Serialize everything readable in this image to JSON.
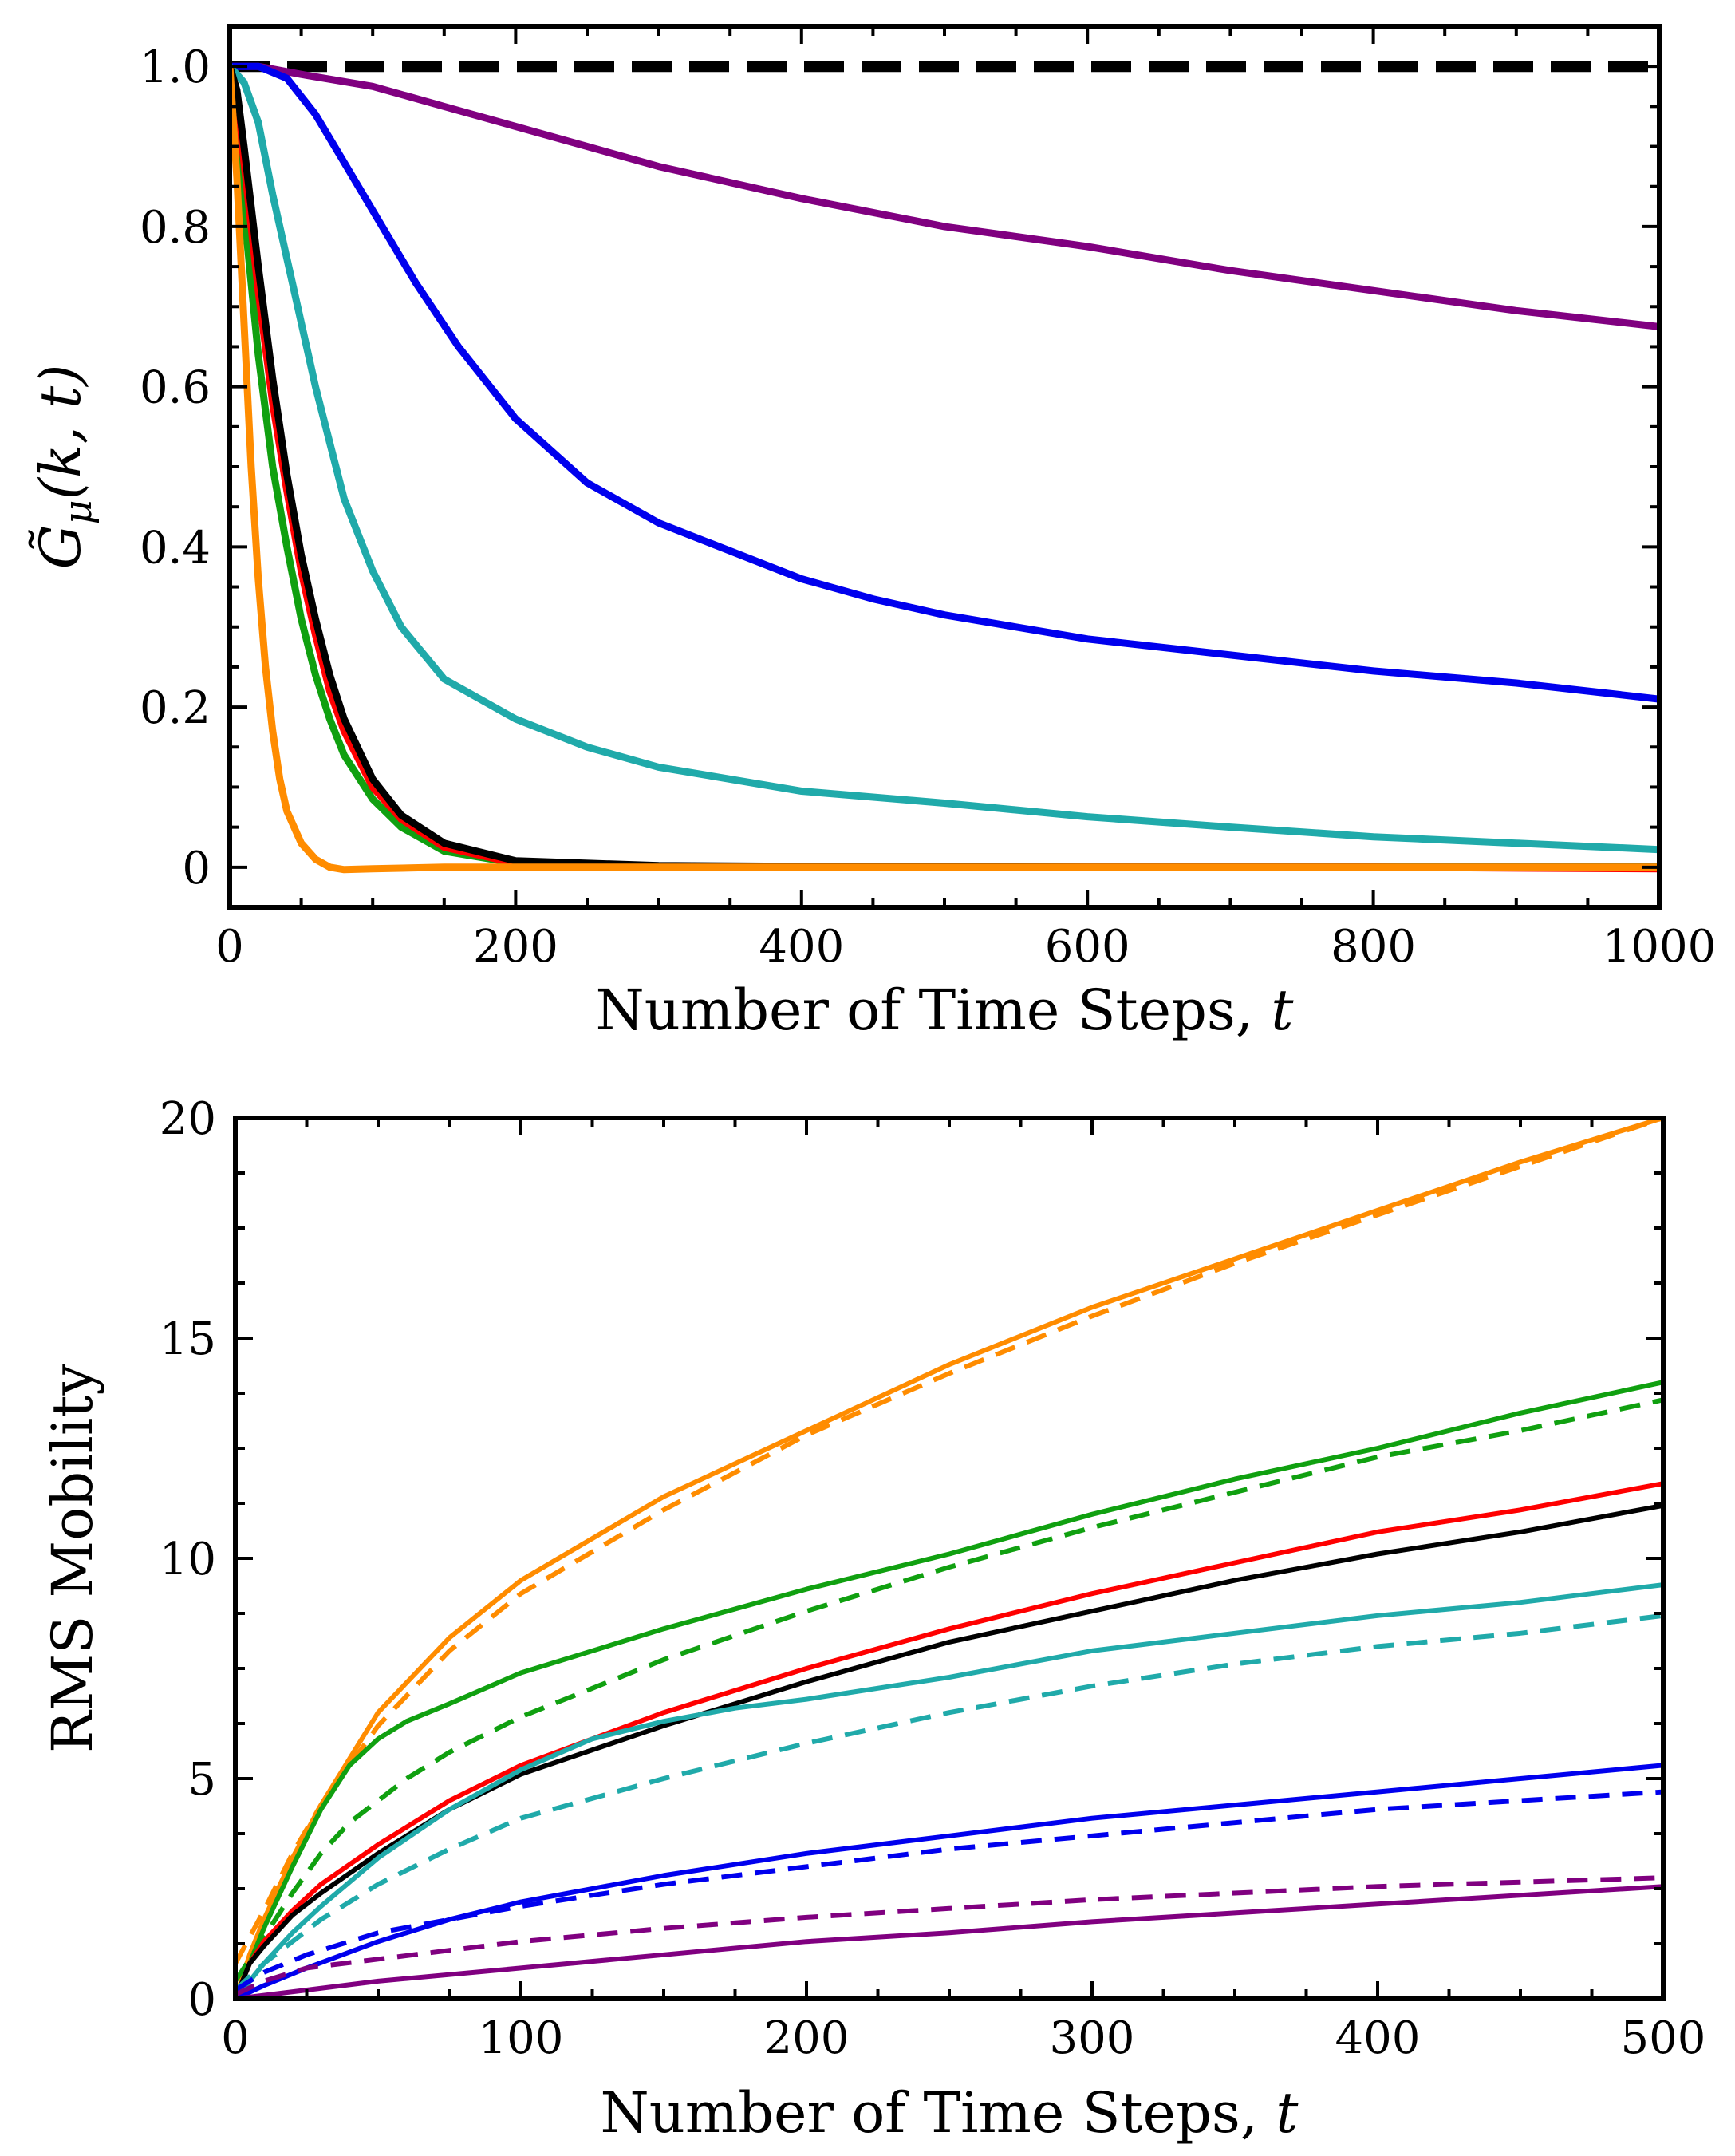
{
  "chart_data": [
    {
      "type": "line",
      "panel": "top",
      "xlabel": "Number of Time Steps, t",
      "ylabel": "G̃μ(k, t)",
      "xlim": [
        0,
        1000
      ],
      "ylim": [
        -0.05,
        1.05
      ],
      "xticks": [
        0,
        200,
        400,
        600,
        800,
        1000
      ],
      "xtick_labels": [
        "0",
        "200",
        "400",
        "600",
        "800",
        "1000"
      ],
      "yticks": [
        0,
        0.2,
        0.4,
        0.6,
        0.8,
        1.0
      ],
      "ytick_labels": [
        "0",
        "0.2",
        "0.4",
        "0.6",
        "0.8",
        "1.0"
      ],
      "series": [
        {
          "name": "reference",
          "color": "#000000",
          "dash": "long",
          "x": [
            0,
            1000
          ],
          "y": [
            1.0,
            1.0
          ]
        },
        {
          "name": "purple",
          "color": "#800080",
          "dash": "solid",
          "x": [
            0,
            20,
            50,
            100,
            150,
            200,
            300,
            400,
            500,
            600,
            700,
            800,
            900,
            1000
          ],
          "y": [
            1.0,
            1.0,
            0.99,
            0.975,
            0.95,
            0.925,
            0.875,
            0.835,
            0.8,
            0.775,
            0.745,
            0.72,
            0.695,
            0.675
          ]
        },
        {
          "name": "blue",
          "color": "#0000ee",
          "dash": "solid",
          "x": [
            0,
            20,
            40,
            60,
            80,
            100,
            130,
            160,
            200,
            250,
            300,
            400,
            450,
            500,
            600,
            700,
            800,
            900,
            1000
          ],
          "y": [
            1.0,
            1.0,
            0.985,
            0.94,
            0.88,
            0.82,
            0.73,
            0.65,
            0.56,
            0.48,
            0.43,
            0.36,
            0.335,
            0.315,
            0.285,
            0.265,
            0.245,
            0.23,
            0.21
          ]
        },
        {
          "name": "cyan",
          "color": "#20aaaa",
          "dash": "solid",
          "x": [
            0,
            10,
            20,
            30,
            40,
            50,
            60,
            70,
            80,
            100,
            120,
            150,
            200,
            250,
            300,
            400,
            500,
            600,
            700,
            800,
            900,
            1000
          ],
          "y": [
            1.0,
            0.98,
            0.93,
            0.84,
            0.76,
            0.68,
            0.6,
            0.53,
            0.46,
            0.37,
            0.3,
            0.235,
            0.185,
            0.15,
            0.125,
            0.095,
            0.08,
            0.063,
            0.05,
            0.038,
            0.03,
            0.022
          ]
        },
        {
          "name": "green",
          "color": "#10a010",
          "dash": "solid",
          "x": [
            0,
            5,
            10,
            20,
            30,
            40,
            50,
            60,
            70,
            80,
            100,
            120,
            150,
            200,
            300,
            400,
            600,
            800,
            1000
          ],
          "y": [
            1.0,
            0.93,
            0.82,
            0.64,
            0.5,
            0.4,
            0.31,
            0.24,
            0.185,
            0.14,
            0.085,
            0.05,
            0.02,
            0.005,
            0,
            0,
            0,
            0,
            0
          ]
        },
        {
          "name": "red",
          "color": "#ff0000",
          "dash": "solid",
          "x": [
            0,
            5,
            10,
            20,
            30,
            40,
            50,
            60,
            70,
            80,
            100,
            120,
            150,
            200,
            300,
            400,
            600,
            800,
            1000
          ],
          "y": [
            1.0,
            0.96,
            0.88,
            0.72,
            0.58,
            0.47,
            0.37,
            0.29,
            0.22,
            0.17,
            0.1,
            0.06,
            0.025,
            0.005,
            0,
            0,
            0,
            0,
            -0.002
          ]
        },
        {
          "name": "black",
          "color": "#000000",
          "dash": "solid",
          "x": [
            0,
            5,
            10,
            20,
            30,
            40,
            50,
            60,
            70,
            80,
            100,
            120,
            150,
            200,
            300,
            400,
            600,
            800,
            1000
          ],
          "y": [
            1.0,
            0.97,
            0.9,
            0.75,
            0.61,
            0.49,
            0.39,
            0.31,
            0.24,
            0.185,
            0.11,
            0.065,
            0.03,
            0.008,
            0.002,
            0.001,
            0,
            0,
            0
          ]
        },
        {
          "name": "orange",
          "color": "#ff8c00",
          "dash": "solid",
          "x": [
            0,
            5,
            10,
            15,
            20,
            25,
            30,
            35,
            40,
            50,
            60,
            70,
            80,
            100,
            150,
            200,
            300,
            500,
            700,
            1000
          ],
          "y": [
            1.0,
            0.86,
            0.68,
            0.5,
            0.36,
            0.25,
            0.17,
            0.11,
            0.07,
            0.03,
            0.01,
            0.0,
            -0.003,
            -0.002,
            0,
            0,
            0,
            0,
            0,
            0
          ]
        }
      ]
    },
    {
      "type": "line",
      "panel": "bottom",
      "xlabel": "Number of Time Steps, t",
      "ylabel": "RMS Mobility",
      "xlim": [
        0,
        500
      ],
      "ylim": [
        0,
        20
      ],
      "xticks": [
        0,
        100,
        200,
        300,
        400,
        500
      ],
      "xtick_labels": [
        "0",
        "100",
        "200",
        "300",
        "400",
        "500"
      ],
      "yticks": [
        0,
        5,
        10,
        15,
        20
      ],
      "ytick_labels": [
        "0",
        "5",
        "10",
        "15",
        "20"
      ],
      "series": [
        {
          "name": "orange",
          "color": "#ff8c00",
          "dash": "solid",
          "x": [
            0,
            5,
            10,
            20,
            30,
            50,
            75,
            100,
            150,
            200,
            250,
            300,
            350,
            400,
            450,
            500
          ],
          "y": [
            0,
            1.0,
            1.8,
            3.2,
            4.4,
            6.5,
            8.2,
            9.5,
            11.4,
            12.9,
            14.4,
            15.7,
            16.8,
            17.9,
            19.0,
            20.0
          ]
        },
        {
          "name": "orange-dashed",
          "color": "#ff8c00",
          "dash": "dashed",
          "x": [
            0,
            5,
            10,
            20,
            30,
            50,
            75,
            100,
            150,
            200,
            250,
            300,
            350,
            400,
            450,
            500
          ],
          "y": [
            0.8,
            1.4,
            2.0,
            3.3,
            4.4,
            6.2,
            7.9,
            9.2,
            11.1,
            12.8,
            14.2,
            15.5,
            16.7,
            17.8,
            18.9,
            20.0
          ]
        },
        {
          "name": "green",
          "color": "#10a010",
          "dash": "solid",
          "x": [
            0,
            10,
            20,
            30,
            40,
            50,
            60,
            75,
            100,
            150,
            200,
            250,
            300,
            350,
            400,
            450,
            500
          ],
          "y": [
            0,
            1.6,
            3.0,
            4.3,
            5.3,
            5.9,
            6.3,
            6.7,
            7.4,
            8.4,
            9.3,
            10.1,
            11.0,
            11.8,
            12.5,
            13.3,
            14.0
          ]
        },
        {
          "name": "green-dashed",
          "color": "#10a010",
          "dash": "dashed",
          "x": [
            0,
            10,
            20,
            30,
            40,
            50,
            60,
            75,
            100,
            150,
            200,
            250,
            300,
            350,
            400,
            450,
            500
          ],
          "y": [
            0.4,
            1.4,
            2.4,
            3.3,
            4.0,
            4.5,
            5.0,
            5.6,
            6.4,
            7.7,
            8.8,
            9.8,
            10.7,
            11.5,
            12.3,
            12.9,
            13.6
          ]
        },
        {
          "name": "red",
          "color": "#ff0000",
          "dash": "solid",
          "x": [
            0,
            5,
            10,
            20,
            30,
            50,
            75,
            100,
            150,
            200,
            250,
            300,
            350,
            400,
            450,
            500
          ],
          "y": [
            0,
            0.8,
            1.3,
            2.0,
            2.6,
            3.5,
            4.5,
            5.3,
            6.5,
            7.5,
            8.4,
            9.2,
            9.9,
            10.6,
            11.1,
            11.7
          ]
        },
        {
          "name": "black",
          "color": "#000000",
          "dash": "solid",
          "x": [
            0,
            5,
            10,
            20,
            30,
            50,
            75,
            100,
            150,
            200,
            250,
            300,
            350,
            400,
            450,
            500
          ],
          "y": [
            0,
            0.8,
            1.2,
            1.9,
            2.4,
            3.3,
            4.3,
            5.1,
            6.2,
            7.2,
            8.1,
            8.8,
            9.5,
            10.1,
            10.6,
            11.2
          ]
        },
        {
          "name": "cyan",
          "color": "#20aaaa",
          "dash": "solid",
          "x": [
            0,
            10,
            20,
            30,
            50,
            75,
            100,
            125,
            150,
            175,
            200,
            250,
            300,
            350,
            400,
            450,
            500
          ],
          "y": [
            0,
            0.8,
            1.5,
            2.1,
            3.2,
            4.3,
            5.2,
            5.9,
            6.3,
            6.6,
            6.8,
            7.3,
            7.9,
            8.3,
            8.7,
            9.0,
            9.4
          ]
        },
        {
          "name": "cyan-dashed",
          "color": "#20aaaa",
          "dash": "dashed",
          "x": [
            0,
            10,
            20,
            30,
            50,
            75,
            100,
            150,
            200,
            250,
            300,
            350,
            400,
            450,
            500
          ],
          "y": [
            0.2,
            0.8,
            1.3,
            1.8,
            2.6,
            3.4,
            4.1,
            5.0,
            5.8,
            6.5,
            7.1,
            7.6,
            8.0,
            8.3,
            8.7
          ]
        },
        {
          "name": "blue",
          "color": "#0000ee",
          "dash": "solid",
          "x": [
            0,
            10,
            25,
            50,
            75,
            100,
            150,
            200,
            250,
            300,
            350,
            400,
            450,
            500
          ],
          "y": [
            0,
            0.3,
            0.7,
            1.3,
            1.8,
            2.2,
            2.8,
            3.3,
            3.7,
            4.1,
            4.4,
            4.7,
            5.0,
            5.3
          ]
        },
        {
          "name": "blue-dashed",
          "color": "#0000ee",
          "dash": "dashed",
          "x": [
            0,
            10,
            25,
            50,
            75,
            100,
            150,
            200,
            250,
            300,
            350,
            400,
            450,
            500
          ],
          "y": [
            0.2,
            0.6,
            1.0,
            1.5,
            1.8,
            2.1,
            2.6,
            3.0,
            3.4,
            3.7,
            4.0,
            4.3,
            4.5,
            4.7
          ]
        },
        {
          "name": "purple",
          "color": "#800080",
          "dash": "solid",
          "x": [
            0,
            25,
            50,
            100,
            150,
            200,
            250,
            300,
            350,
            400,
            450,
            500
          ],
          "y": [
            0,
            0.2,
            0.4,
            0.7,
            1.0,
            1.3,
            1.5,
            1.75,
            1.95,
            2.15,
            2.35,
            2.55
          ]
        },
        {
          "name": "purple-dashed",
          "color": "#800080",
          "dash": "dashed",
          "x": [
            0,
            10,
            25,
            50,
            100,
            150,
            200,
            250,
            300,
            350,
            400,
            450,
            500
          ],
          "y": [
            0.1,
            0.4,
            0.7,
            0.9,
            1.3,
            1.6,
            1.85,
            2.05,
            2.25,
            2.4,
            2.55,
            2.65,
            2.75
          ]
        }
      ]
    }
  ]
}
